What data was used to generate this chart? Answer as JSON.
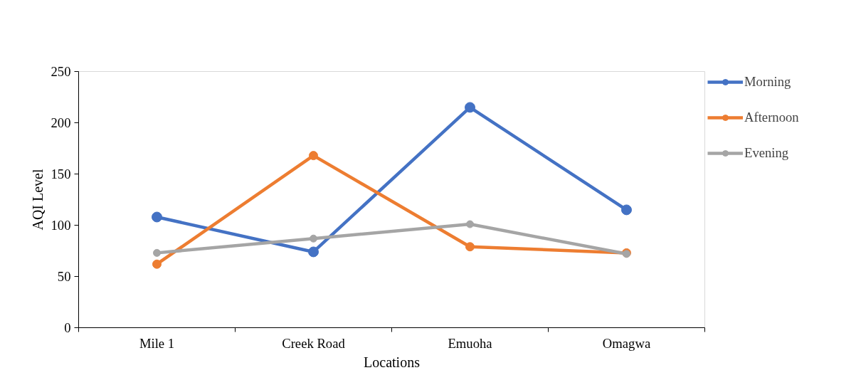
{
  "chart_data": {
    "type": "line",
    "xlabel": "Locations",
    "ylabel": "AQI Level",
    "categories": [
      "Mile 1",
      "Creek Road",
      "Emuoha",
      "Omagwa"
    ],
    "series": [
      {
        "name": "Morning",
        "color": "#4472c4",
        "values": [
          108,
          74,
          215,
          115
        ]
      },
      {
        "name": "Afternoon",
        "color": "#ed7d31",
        "values": [
          62,
          168,
          79,
          73
        ]
      },
      {
        "name": "Evening",
        "color": "#a5a5a5",
        "values": [
          73,
          87,
          101,
          72
        ]
      }
    ],
    "ylim": [
      0,
      250
    ],
    "yticks": [
      0,
      50,
      100,
      150,
      200,
      250
    ],
    "grid": false,
    "legend": "right",
    "marker": "circle",
    "line_style": "solid"
  }
}
